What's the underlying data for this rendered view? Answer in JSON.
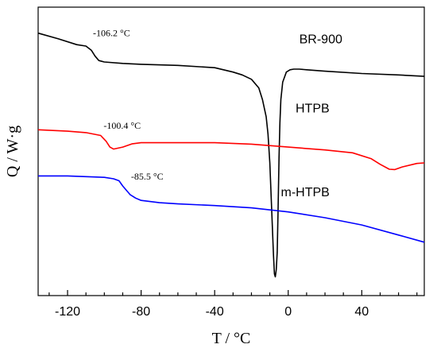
{
  "chart_data": {
    "type": "line",
    "xlabel": "T / °C",
    "ylabel": "Q / W·g",
    "xlim": [
      -136,
      74
    ],
    "ylim": [
      0,
      100
    ],
    "xticks": [
      -120,
      -80,
      -40,
      0,
      40
    ],
    "grid": false,
    "y_tick_labels": false,
    "series": [
      {
        "name": "BR-900",
        "color": "#000000",
        "x": [
          -136,
          -125,
          -115,
          -110,
          -107,
          -105,
          -103,
          -100,
          -90,
          -80,
          -60,
          -40,
          -30,
          -25,
          -20,
          -16,
          -14,
          -12,
          -11,
          -10,
          -9,
          -8,
          -7.5,
          -7,
          -6.5,
          -6,
          -5.5,
          -5,
          -4.5,
          -4,
          -3,
          -1,
          1,
          3,
          6,
          10,
          20,
          40,
          60,
          74
        ],
        "y": [
          91,
          89,
          87,
          86.5,
          85,
          83,
          81.5,
          81,
          80.5,
          80.2,
          79.8,
          79,
          77.5,
          76.5,
          75,
          72,
          68,
          62,
          56,
          46,
          30,
          14,
          7.5,
          6.5,
          9,
          15,
          30,
          48,
          60,
          68,
          74,
          77.5,
          78.3,
          78.5,
          78.5,
          78.3,
          77.8,
          77,
          76.5,
          76
        ]
      },
      {
        "name": "HTPB",
        "color": "#ff0000",
        "x": [
          -136,
          -120,
          -110,
          -102,
          -99,
          -97,
          -95,
          -90,
          -85,
          -80,
          -60,
          -40,
          -20,
          0,
          20,
          35,
          45,
          50,
          55,
          58,
          62,
          70,
          74
        ],
        "y": [
          57.5,
          57,
          56.5,
          55.5,
          53.5,
          51.5,
          50.8,
          51.5,
          52.6,
          53,
          53,
          53,
          52.5,
          51.5,
          50.5,
          49.5,
          47.5,
          45.5,
          43.8,
          43.7,
          44.6,
          45.8,
          46
        ]
      },
      {
        "name": "m-HTPB",
        "color": "#0000ff",
        "x": [
          -136,
          -120,
          -100,
          -95,
          -92,
          -90,
          -88,
          -86,
          -83,
          -80,
          -70,
          -60,
          -40,
          -20,
          0,
          20,
          40,
          60,
          74
        ],
        "y": [
          41.5,
          41.5,
          41,
          40.5,
          39.8,
          38,
          36.5,
          35,
          33.8,
          33,
          32.2,
          31.8,
          31.2,
          30.4,
          29,
          27,
          24.5,
          21,
          18.5
        ]
      }
    ],
    "annotations": [
      {
        "text": "-106.2 °C",
        "x": -106.2,
        "y": 90
      },
      {
        "text": "-100.4 °C",
        "x": -100.4,
        "y": 57.8
      },
      {
        "text": "-85.5 °C",
        "x": -85.5,
        "y": 40.2
      }
    ],
    "series_labels": [
      {
        "text": "BR-900",
        "x": 6,
        "y": 87.5
      },
      {
        "text": "HTPB",
        "x": 4,
        "y": 63.5
      },
      {
        "text": "m-HTPB",
        "x": -4,
        "y": 34.5
      }
    ]
  }
}
